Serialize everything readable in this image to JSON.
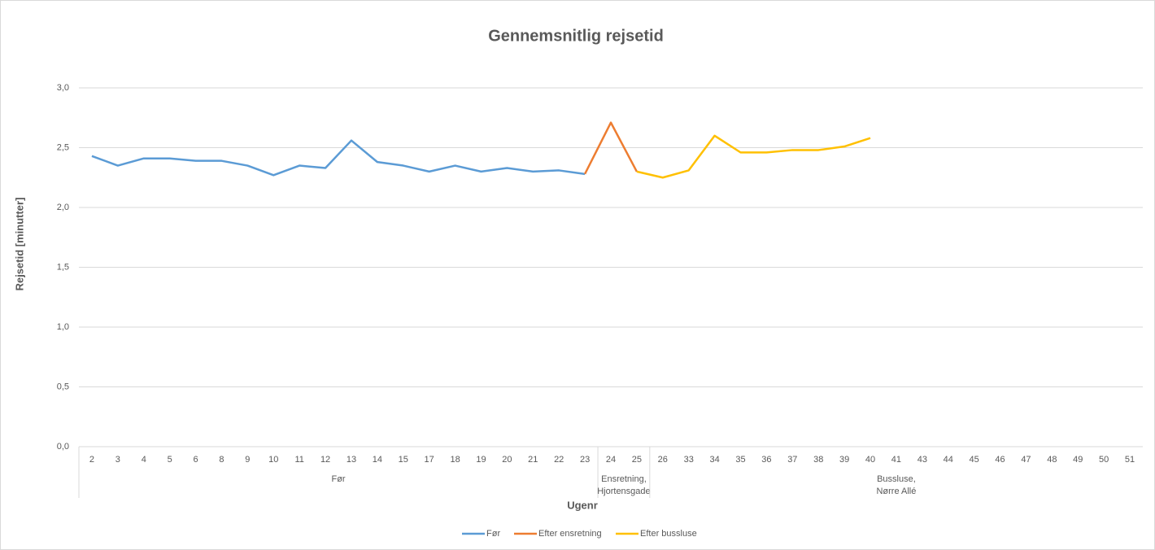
{
  "chart_data": {
    "type": "line",
    "title": "Gennemsnitlig rejsetid",
    "y_label": "Rejsetid [minutter]",
    "x_label": "Ugenr",
    "groups": [
      {
        "label": [
          "Før"
        ],
        "categories": [
          "2",
          "3",
          "4",
          "5",
          "6",
          "8",
          "9",
          "10",
          "11",
          "12",
          "13",
          "14",
          "15",
          "17",
          "18",
          "19",
          "20",
          "21",
          "22",
          "23"
        ]
      },
      {
        "label": [
          "Ensretning,",
          "Hjortensgade"
        ],
        "categories": [
          "24",
          "25"
        ]
      },
      {
        "label": [
          "Bussluse,",
          "Nørre Allé"
        ],
        "categories": [
          "26",
          "33",
          "34",
          "35",
          "36",
          "37",
          "38",
          "39",
          "40",
          "41",
          "43",
          "44",
          "45",
          "46",
          "47",
          "48",
          "49",
          "50",
          "51"
        ]
      }
    ],
    "series": [
      {
        "name": "Før",
        "color": "#5b9bd5",
        "values": [
          2.43,
          2.35,
          2.41,
          2.41,
          2.39,
          2.39,
          2.35,
          2.27,
          2.35,
          2.33,
          2.56,
          2.38,
          2.35,
          2.3,
          2.35,
          2.3,
          2.33,
          2.3,
          2.31,
          2.28,
          null,
          null,
          null,
          null,
          null,
          null,
          null,
          null,
          null,
          null,
          null,
          null,
          null,
          null,
          null,
          null,
          null,
          null,
          null,
          null,
          null
        ]
      },
      {
        "name": "Efter ensretning",
        "color": "#ed7d31",
        "values": [
          null,
          null,
          null,
          null,
          null,
          null,
          null,
          null,
          null,
          null,
          null,
          null,
          null,
          null,
          null,
          null,
          null,
          null,
          null,
          2.28,
          2.71,
          2.3,
          null,
          null,
          null,
          null,
          null,
          null,
          null,
          null,
          null,
          null,
          null,
          null,
          null,
          null,
          null,
          null,
          null,
          null,
          null
        ]
      },
      {
        "name": "Efter bussluse",
        "color": "#ffc000",
        "values": [
          null,
          null,
          null,
          null,
          null,
          null,
          null,
          null,
          null,
          null,
          null,
          null,
          null,
          null,
          null,
          null,
          null,
          null,
          null,
          null,
          null,
          2.3,
          2.25,
          2.31,
          2.6,
          2.46,
          2.46,
          2.48,
          2.48,
          2.51,
          2.58,
          null,
          null,
          null,
          null,
          null,
          null,
          null,
          null,
          null,
          null
        ]
      }
    ],
    "ylim": [
      0,
      3
    ],
    "yticks": [
      {
        "value": 0,
        "label": "0,0"
      },
      {
        "value": 0.5,
        "label": "0,5"
      },
      {
        "value": 1,
        "label": "1,0"
      },
      {
        "value": 1.5,
        "label": "1,5"
      },
      {
        "value": 2,
        "label": "2,0"
      },
      {
        "value": 2.5,
        "label": "2,5"
      },
      {
        "value": 3,
        "label": "3,0"
      }
    ],
    "grid": true,
    "legend": "bottom"
  }
}
